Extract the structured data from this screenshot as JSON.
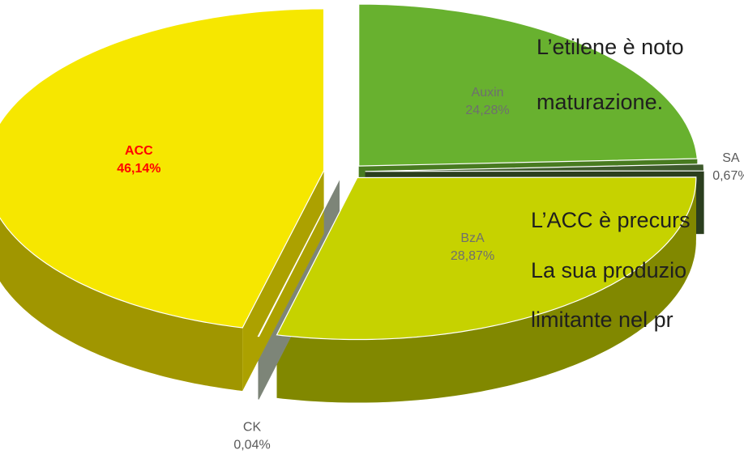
{
  "chart_data": {
    "type": "pie",
    "categories": [
      "Auxin",
      "SA",
      "BzA",
      "CK",
      "ACC"
    ],
    "values": [
      24.28,
      0.67,
      28.87,
      0.04,
      46.14
    ],
    "value_labels": [
      "24,28%",
      "0,67%",
      "28,87%",
      "0,04%",
      "46,14%"
    ],
    "colors": [
      "#68b12f",
      "#3e5a2c",
      "#c6d200",
      "#b4bfad",
      "#f6e700"
    ],
    "label_colors": [
      "#6f6f6f",
      "#595959",
      "#6f6f6f",
      "#595959",
      "#ff0000"
    ],
    "annotations": [
      "L’etilene è noto",
      "maturazione.",
      "L’ACC è precurs",
      "La sua produzio",
      "limitante nel pr"
    ]
  }
}
